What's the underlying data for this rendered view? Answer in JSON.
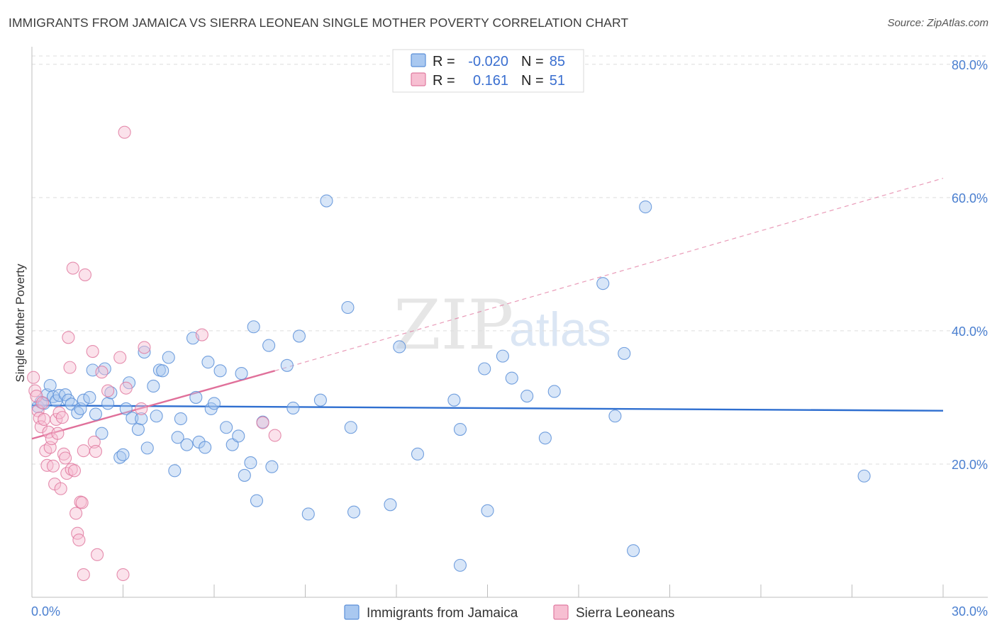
{
  "title": "IMMIGRANTS FROM JAMAICA VS SIERRA LEONEAN SINGLE MOTHER POVERTY CORRELATION CHART",
  "source": "Source: ZipAtlas.com",
  "watermark": {
    "zip": "ZIP",
    "atlas": "atlas"
  },
  "legend": {
    "rows": [
      {
        "r_label": "R =",
        "r_value": "-0.020",
        "n_label": "N =",
        "n_value": "85",
        "color": "#a9c8f0",
        "stroke": "#5b8fd8"
      },
      {
        "r_label": "R =",
        "r_value": "0.161",
        "n_label": "N =",
        "n_value": "51",
        "color": "#f7bfd2",
        "stroke": "#e07aa0"
      }
    ]
  },
  "bottom_legend": [
    {
      "label": "Immigrants from Jamaica",
      "color": "#a9c8f0",
      "stroke": "#5b8fd8"
    },
    {
      "label": "Sierra Leoneans",
      "color": "#f7bfd2",
      "stroke": "#e07aa0"
    }
  ],
  "chart_data": {
    "type": "scatter",
    "title": "IMMIGRANTS FROM JAMAICA VS SIERRA LEONEAN SINGLE MOTHER POVERTY CORRELATION CHART",
    "xlabel": "",
    "ylabel": "Single Mother Poverty",
    "xlim": [
      0,
      30
    ],
    "ylim": [
      0,
      82
    ],
    "x_tick_labels": [
      "0.0%",
      "30.0%"
    ],
    "y_ticks": [
      20,
      40,
      60,
      80
    ],
    "y_tick_labels": [
      "20.0%",
      "40.0%",
      "60.0%",
      "80.0%"
    ],
    "grid": true,
    "series": [
      {
        "name": "Immigrants from Jamaica",
        "color": "#a9c8f0",
        "stroke": "#5b8fd8",
        "trend": {
          "x": [
            0,
            30
          ],
          "y": [
            28.8,
            28.0
          ],
          "color": "#2f6fd0"
        },
        "points": [
          [
            0.2,
            28.6
          ],
          [
            0.3,
            29.3
          ],
          [
            0.4,
            29.1
          ],
          [
            0.5,
            30.4
          ],
          [
            0.6,
            31.8
          ],
          [
            0.7,
            30.1
          ],
          [
            0.8,
            29.5
          ],
          [
            0.9,
            30.3
          ],
          [
            1.1,
            30.4
          ],
          [
            1.2,
            29.6
          ],
          [
            1.3,
            29.0
          ],
          [
            1.5,
            27.7
          ],
          [
            1.6,
            28.3
          ],
          [
            1.7,
            29.6
          ],
          [
            1.9,
            30.0
          ],
          [
            2.0,
            34.1
          ],
          [
            2.1,
            27.5
          ],
          [
            2.3,
            24.6
          ],
          [
            2.4,
            34.3
          ],
          [
            2.5,
            29.1
          ],
          [
            2.6,
            30.7
          ],
          [
            2.9,
            21.0
          ],
          [
            3.0,
            21.4
          ],
          [
            3.1,
            28.3
          ],
          [
            3.2,
            32.2
          ],
          [
            3.3,
            26.9
          ],
          [
            3.5,
            25.2
          ],
          [
            3.6,
            26.8
          ],
          [
            3.7,
            36.8
          ],
          [
            3.8,
            22.4
          ],
          [
            4.0,
            31.7
          ],
          [
            4.1,
            27.2
          ],
          [
            4.2,
            34.1
          ],
          [
            4.3,
            34.0
          ],
          [
            4.5,
            36.0
          ],
          [
            4.7,
            19.0
          ],
          [
            4.8,
            24.0
          ],
          [
            4.9,
            26.8
          ],
          [
            5.1,
            22.9
          ],
          [
            5.3,
            38.9
          ],
          [
            5.4,
            30.0
          ],
          [
            5.5,
            23.3
          ],
          [
            5.7,
            22.5
          ],
          [
            5.8,
            35.3
          ],
          [
            5.9,
            28.3
          ],
          [
            6.0,
            29.1
          ],
          [
            6.2,
            34.0
          ],
          [
            6.4,
            25.5
          ],
          [
            6.6,
            22.9
          ],
          [
            6.8,
            24.2
          ],
          [
            6.9,
            33.6
          ],
          [
            7.0,
            18.3
          ],
          [
            7.2,
            20.2
          ],
          [
            7.3,
            40.6
          ],
          [
            7.4,
            14.5
          ],
          [
            7.6,
            26.3
          ],
          [
            7.8,
            37.8
          ],
          [
            7.9,
            19.6
          ],
          [
            8.4,
            34.8
          ],
          [
            8.6,
            28.4
          ],
          [
            8.8,
            39.2
          ],
          [
            9.1,
            12.5
          ],
          [
            9.5,
            29.6
          ],
          [
            9.7,
            59.5
          ],
          [
            10.4,
            43.5
          ],
          [
            10.5,
            25.5
          ],
          [
            10.6,
            12.8
          ],
          [
            11.8,
            13.9
          ],
          [
            12.1,
            37.6
          ],
          [
            12.7,
            21.5
          ],
          [
            13.9,
            29.6
          ],
          [
            14.1,
            25.2
          ],
          [
            14.1,
            4.8
          ],
          [
            14.9,
            34.3
          ],
          [
            15.0,
            13.0
          ],
          [
            15.5,
            36.2
          ],
          [
            15.8,
            32.9
          ],
          [
            16.3,
            30.2
          ],
          [
            16.9,
            23.9
          ],
          [
            17.2,
            30.9
          ],
          [
            18.8,
            47.1
          ],
          [
            19.2,
            27.2
          ],
          [
            19.5,
            36.6
          ],
          [
            19.8,
            7.0
          ],
          [
            20.2,
            58.6
          ],
          [
            27.4,
            18.2
          ]
        ]
      },
      {
        "name": "Sierra Leoneans",
        "color": "#f7bfd2",
        "stroke": "#e07aa0",
        "trend": {
          "x": [
            0,
            8.0
          ],
          "y": [
            23.8,
            34.0
          ],
          "color": "#e0709a",
          "extended_to": [
            30,
            62.9
          ]
        },
        "points": [
          [
            0.05,
            33.0
          ],
          [
            0.1,
            31.0
          ],
          [
            0.15,
            30.2
          ],
          [
            0.2,
            28.0
          ],
          [
            0.25,
            26.9
          ],
          [
            0.3,
            25.6
          ],
          [
            0.35,
            29.2
          ],
          [
            0.4,
            26.7
          ],
          [
            0.45,
            22.0
          ],
          [
            0.5,
            19.8
          ],
          [
            0.55,
            24.8
          ],
          [
            0.6,
            22.5
          ],
          [
            0.65,
            23.8
          ],
          [
            0.7,
            19.7
          ],
          [
            0.75,
            17.0
          ],
          [
            0.8,
            26.7
          ],
          [
            0.85,
            24.6
          ],
          [
            0.9,
            27.7
          ],
          [
            0.95,
            16.3
          ],
          [
            1.0,
            27.0
          ],
          [
            1.05,
            21.5
          ],
          [
            1.1,
            20.9
          ],
          [
            1.15,
            18.6
          ],
          [
            1.2,
            39.0
          ],
          [
            1.25,
            34.5
          ],
          [
            1.3,
            19.2
          ],
          [
            1.35,
            49.4
          ],
          [
            1.4,
            19.0
          ],
          [
            1.45,
            12.6
          ],
          [
            1.5,
            9.6
          ],
          [
            1.55,
            8.6
          ],
          [
            1.6,
            14.3
          ],
          [
            1.65,
            14.2
          ],
          [
            1.7,
            3.4
          ],
          [
            1.7,
            22.0
          ],
          [
            1.75,
            48.4
          ],
          [
            2.0,
            36.9
          ],
          [
            2.05,
            23.3
          ],
          [
            2.1,
            21.9
          ],
          [
            2.15,
            6.4
          ],
          [
            2.3,
            33.8
          ],
          [
            2.5,
            31.0
          ],
          [
            2.9,
            36.0
          ],
          [
            3.0,
            3.4
          ],
          [
            3.05,
            69.8
          ],
          [
            3.1,
            31.4
          ],
          [
            3.6,
            28.3
          ],
          [
            3.7,
            37.5
          ],
          [
            5.6,
            39.4
          ],
          [
            7.6,
            26.2
          ],
          [
            8.0,
            24.3
          ]
        ]
      }
    ]
  }
}
